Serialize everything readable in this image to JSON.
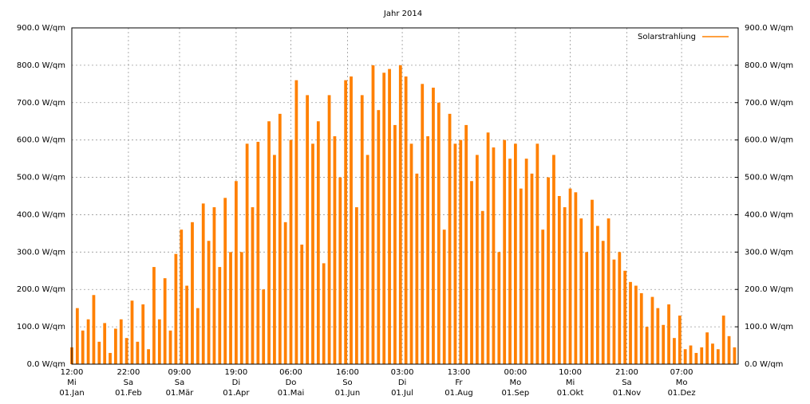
{
  "chart_data": {
    "type": "bar",
    "title": "Jahr 2014",
    "x": [
      0,
      3,
      6,
      9,
      12,
      15,
      18,
      21,
      24,
      27,
      30,
      33,
      36,
      39,
      42,
      45,
      48,
      51,
      54,
      57,
      60,
      63,
      66,
      69,
      72,
      75,
      78,
      81,
      84,
      87,
      90,
      93,
      96,
      99,
      102,
      105,
      108,
      111,
      114,
      117,
      120,
      123,
      126,
      129,
      132,
      135,
      138,
      141,
      144,
      147,
      150,
      153,
      156,
      159,
      162,
      165,
      168,
      171,
      174,
      177,
      180,
      183,
      186,
      189,
      192,
      195,
      198,
      201,
      204,
      207,
      210,
      213,
      216,
      219,
      222,
      225,
      228,
      231,
      234,
      237,
      240,
      243,
      246,
      249,
      252,
      255,
      258,
      261,
      264,
      267,
      270,
      273,
      276,
      279,
      282,
      285,
      288,
      291,
      294,
      297,
      300,
      303,
      306,
      309,
      312,
      315,
      318,
      321,
      324,
      327,
      330,
      333,
      336,
      339,
      342,
      345,
      348,
      351,
      354,
      357,
      360,
      363
    ],
    "series": [
      {
        "name": "Solarstrahlung",
        "color": "#ff8000",
        "values": [
          45,
          150,
          90,
          120,
          185,
          60,
          110,
          30,
          95,
          120,
          70,
          170,
          60,
          160,
          40,
          260,
          120,
          230,
          90,
          295,
          360,
          210,
          380,
          150,
          430,
          330,
          420,
          260,
          445,
          300,
          490,
          300,
          590,
          420,
          595,
          200,
          650,
          560,
          670,
          380,
          600,
          760,
          320,
          720,
          590,
          650,
          270,
          720,
          610,
          500,
          760,
          770,
          420,
          720,
          560,
          800,
          680,
          780,
          790,
          640,
          800,
          770,
          590,
          510,
          750,
          610,
          740,
          700,
          360,
          670,
          590,
          600,
          640,
          490,
          560,
          410,
          620,
          580,
          300,
          600,
          550,
          590,
          470,
          550,
          510,
          590,
          360,
          500,
          560,
          450,
          420,
          470,
          460,
          390,
          300,
          440,
          370,
          330,
          390,
          280,
          300,
          250,
          220,
          210,
          190,
          100,
          180,
          150,
          105,
          160,
          70,
          130,
          40,
          50,
          30,
          45,
          85,
          55,
          40,
          130,
          75,
          45
        ]
      }
    ],
    "xlim": [
      0,
      365
    ],
    "xticks": [
      {
        "value": 0,
        "label": "12:00\nMi\n01.Jan"
      },
      {
        "value": 31,
        "label": "22:00\nSa\n01.Feb"
      },
      {
        "value": 59,
        "label": "09:00\nSa\n01.Mär"
      },
      {
        "value": 90,
        "label": "19:00\nDi\n01.Apr"
      },
      {
        "value": 120,
        "label": "06:00\nDo\n01.Mai"
      },
      {
        "value": 151,
        "label": "16:00\nSo\n01.Jun"
      },
      {
        "value": 181,
        "label": "03:00\nDi\n01.Jul"
      },
      {
        "value": 212,
        "label": "13:00\nFr\n01.Aug"
      },
      {
        "value": 243,
        "label": "00:00\nMo\n01.Sep"
      },
      {
        "value": 273,
        "label": "10:00\nMi\n01.Okt"
      },
      {
        "value": 304,
        "label": "21:00\nSa\n01.Nov"
      },
      {
        "value": 334,
        "label": "07:00\nMo\n01.Dez"
      }
    ],
    "ylim": [
      0,
      900
    ],
    "yticks": [
      {
        "value": 0,
        "label": "0.0 W/qm"
      },
      {
        "value": 100,
        "label": "100.0 W/qm"
      },
      {
        "value": 200,
        "label": "200.0 W/qm"
      },
      {
        "value": 300,
        "label": "300.0 W/qm"
      },
      {
        "value": 400,
        "label": "400.0 W/qm"
      },
      {
        "value": 500,
        "label": "500.0 W/qm"
      },
      {
        "value": 600,
        "label": "600.0 W/qm"
      },
      {
        "value": 700,
        "label": "700.0 W/qm"
      },
      {
        "value": 800,
        "label": "800.0 W/qm"
      },
      {
        "value": 900,
        "label": "900.0 W/qm"
      }
    ],
    "y2lim": [
      0,
      900
    ],
    "y2ticks": [
      {
        "value": 0,
        "label": "0.0 W/qm"
      },
      {
        "value": 100,
        "label": "100.0 W/qm"
      },
      {
        "value": 200,
        "label": "200.0 W/qm"
      },
      {
        "value": 300,
        "label": "300.0 W/qm"
      },
      {
        "value": 400,
        "label": "400.0 W/qm"
      },
      {
        "value": 500,
        "label": "500.0 W/qm"
      },
      {
        "value": 600,
        "label": "600.0 W/qm"
      },
      {
        "value": 700,
        "label": "700.0 W/qm"
      },
      {
        "value": 800,
        "label": "800.0 W/qm"
      },
      {
        "value": 900,
        "label": "900.0 W/qm"
      }
    ],
    "grid": true,
    "legend": "top-right"
  }
}
